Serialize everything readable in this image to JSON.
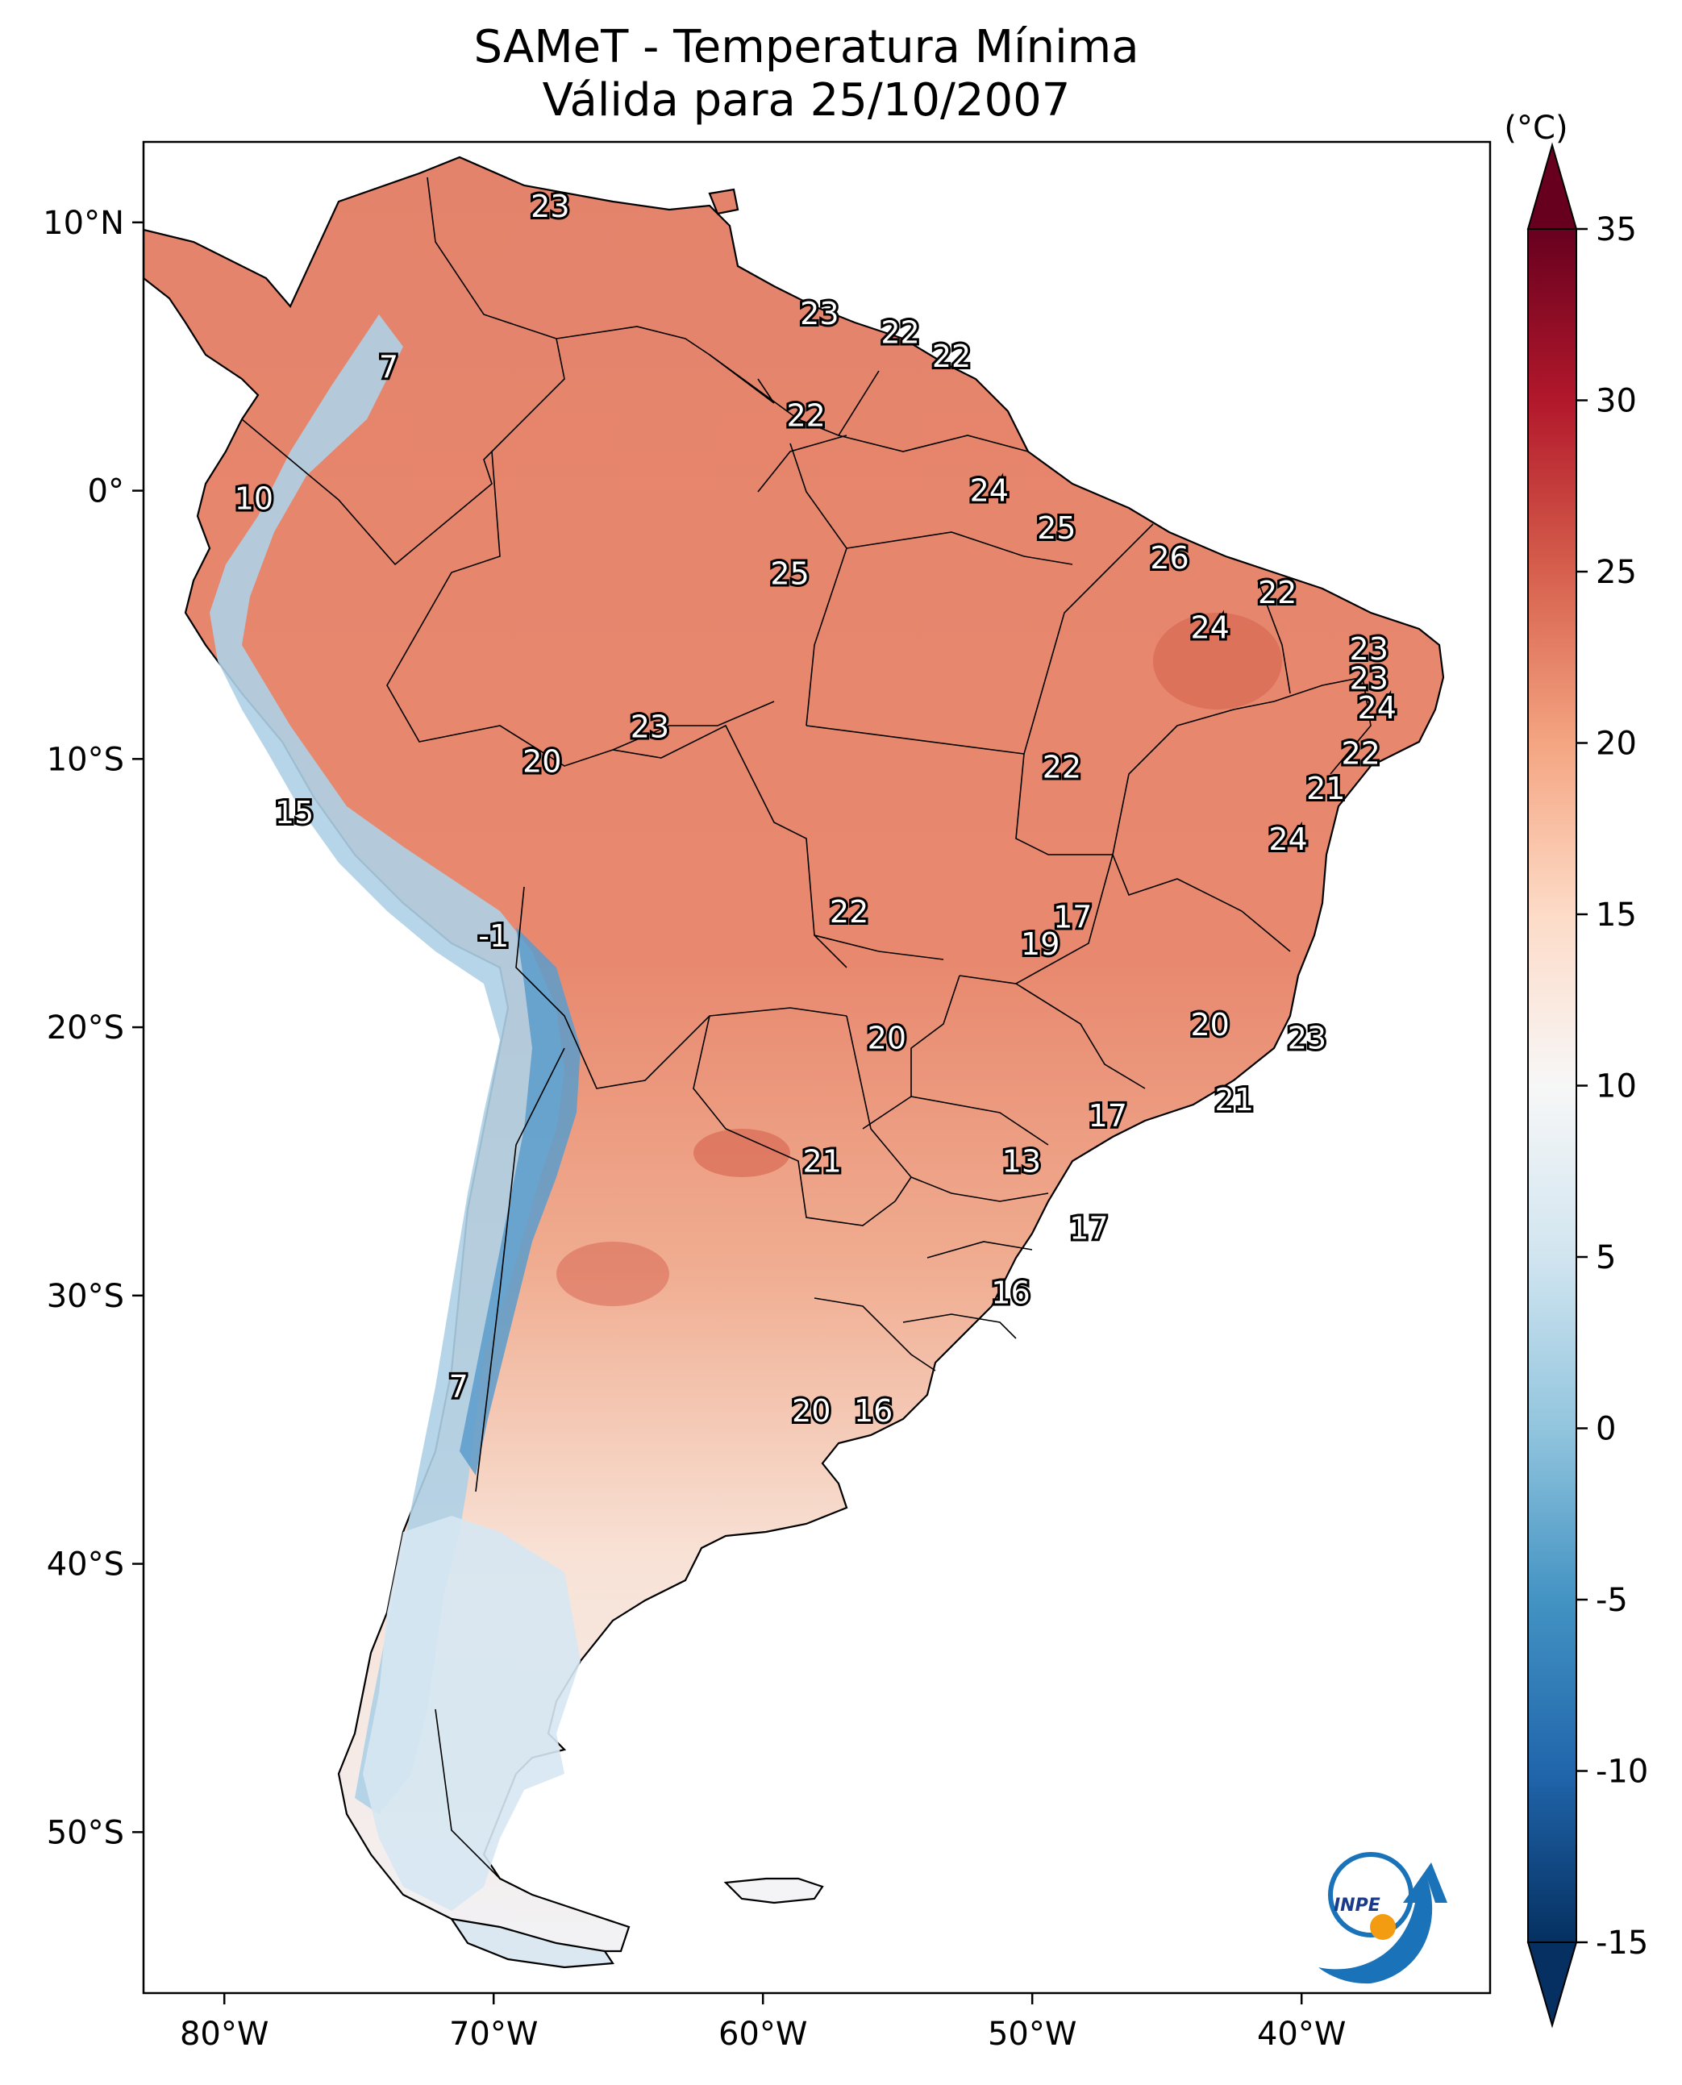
{
  "title": {
    "line1": "SAMeT - Temperatura Mínima",
    "line2": "Válida para 25/10/2007"
  },
  "map": {
    "lon_range": [
      -83,
      -33
    ],
    "lat_range": [
      -56,
      13
    ],
    "x_ticks": [
      {
        "lon": -80,
        "label": "80°W"
      },
      {
        "lon": -70,
        "label": "70°W"
      },
      {
        "lon": -60,
        "label": "60°W"
      },
      {
        "lon": -50,
        "label": "50°W"
      },
      {
        "lon": -40,
        "label": "40°W"
      }
    ],
    "y_ticks": [
      {
        "lat": 10,
        "label": "10°N"
      },
      {
        "lat": 0,
        "label": "0°"
      },
      {
        "lat": -10,
        "label": "10°S"
      },
      {
        "lat": -20,
        "label": "20°S"
      },
      {
        "lat": -30,
        "label": "30°S"
      },
      {
        "lat": -40,
        "label": "40°S"
      },
      {
        "lat": -50,
        "label": "50°S"
      }
    ],
    "labels": [
      {
        "lon": -67.9,
        "lat": 10.6,
        "text": "23"
      },
      {
        "lon": -73.9,
        "lat": 4.6,
        "text": "7"
      },
      {
        "lon": -57.9,
        "lat": 6.6,
        "text": "23"
      },
      {
        "lon": -54.9,
        "lat": 5.9,
        "text": "22"
      },
      {
        "lon": -53.0,
        "lat": 5.0,
        "text": "22"
      },
      {
        "lon": -58.4,
        "lat": 2.8,
        "text": "22"
      },
      {
        "lon": -51.6,
        "lat": 0.0,
        "text": "24"
      },
      {
        "lon": -78.9,
        "lat": -0.3,
        "text": "10"
      },
      {
        "lon": -49.1,
        "lat": -1.4,
        "text": "25"
      },
      {
        "lon": -44.9,
        "lat": -2.5,
        "text": "26"
      },
      {
        "lon": -59.0,
        "lat": -3.1,
        "text": "25"
      },
      {
        "lon": -40.9,
        "lat": -3.8,
        "text": "22"
      },
      {
        "lon": -43.4,
        "lat": -5.1,
        "text": "24"
      },
      {
        "lon": -37.5,
        "lat": -5.9,
        "text": "23"
      },
      {
        "lon": -37.5,
        "lat": -7.0,
        "text": "23"
      },
      {
        "lon": -37.2,
        "lat": -8.1,
        "text": "24"
      },
      {
        "lon": -64.2,
        "lat": -8.8,
        "text": "23"
      },
      {
        "lon": -37.8,
        "lat": -9.8,
        "text": "22"
      },
      {
        "lon": -68.2,
        "lat": -10.1,
        "text": "20"
      },
      {
        "lon": -48.9,
        "lat": -10.3,
        "text": "22"
      },
      {
        "lon": -39.1,
        "lat": -11.1,
        "text": "21"
      },
      {
        "lon": -77.4,
        "lat": -12.0,
        "text": "15"
      },
      {
        "lon": -40.5,
        "lat": -13.0,
        "text": "24"
      },
      {
        "lon": -48.5,
        "lat": -15.9,
        "text": "17"
      },
      {
        "lon": -56.8,
        "lat": -15.7,
        "text": "22"
      },
      {
        "lon": -70.0,
        "lat": -16.6,
        "text": "-1"
      },
      {
        "lon": -49.7,
        "lat": -16.9,
        "text": "19"
      },
      {
        "lon": -43.4,
        "lat": -19.9,
        "text": "20"
      },
      {
        "lon": -55.4,
        "lat": -20.4,
        "text": "20"
      },
      {
        "lon": -39.8,
        "lat": -20.4,
        "text": "23"
      },
      {
        "lon": -42.5,
        "lat": -22.7,
        "text": "21"
      },
      {
        "lon": -47.2,
        "lat": -23.3,
        "text": "17"
      },
      {
        "lon": -57.8,
        "lat": -25.0,
        "text": "21"
      },
      {
        "lon": -50.4,
        "lat": -25.0,
        "text": "13"
      },
      {
        "lon": -47.9,
        "lat": -27.5,
        "text": "17"
      },
      {
        "lon": -50.8,
        "lat": -29.9,
        "text": "16"
      },
      {
        "lon": -71.3,
        "lat": -33.4,
        "text": "7"
      },
      {
        "lon": -58.2,
        "lat": -34.3,
        "text": "20"
      },
      {
        "lon": -55.9,
        "lat": -34.3,
        "text": "16"
      }
    ]
  },
  "colorbar": {
    "unit": "(°C)",
    "min": -15,
    "max": 35,
    "ticks": [
      {
        "value": 35,
        "label": "35"
      },
      {
        "value": 30,
        "label": "30"
      },
      {
        "value": 25,
        "label": "25"
      },
      {
        "value": 20,
        "label": "20"
      },
      {
        "value": 15,
        "label": "15"
      },
      {
        "value": 10,
        "label": "10"
      },
      {
        "value": 5,
        "label": "5"
      },
      {
        "value": 0,
        "label": "0"
      },
      {
        "value": -5,
        "label": "-5"
      },
      {
        "value": -10,
        "label": "-10"
      },
      {
        "value": -15,
        "label": "-15"
      }
    ],
    "colors": [
      "#053061",
      "#2166ac",
      "#4393c3",
      "#92c5de",
      "#d1e5f0",
      "#f7f7f7",
      "#fddbc7",
      "#f4a582",
      "#d6604d",
      "#b2182b",
      "#67001f"
    ]
  },
  "logo": {
    "text": "INPE"
  }
}
